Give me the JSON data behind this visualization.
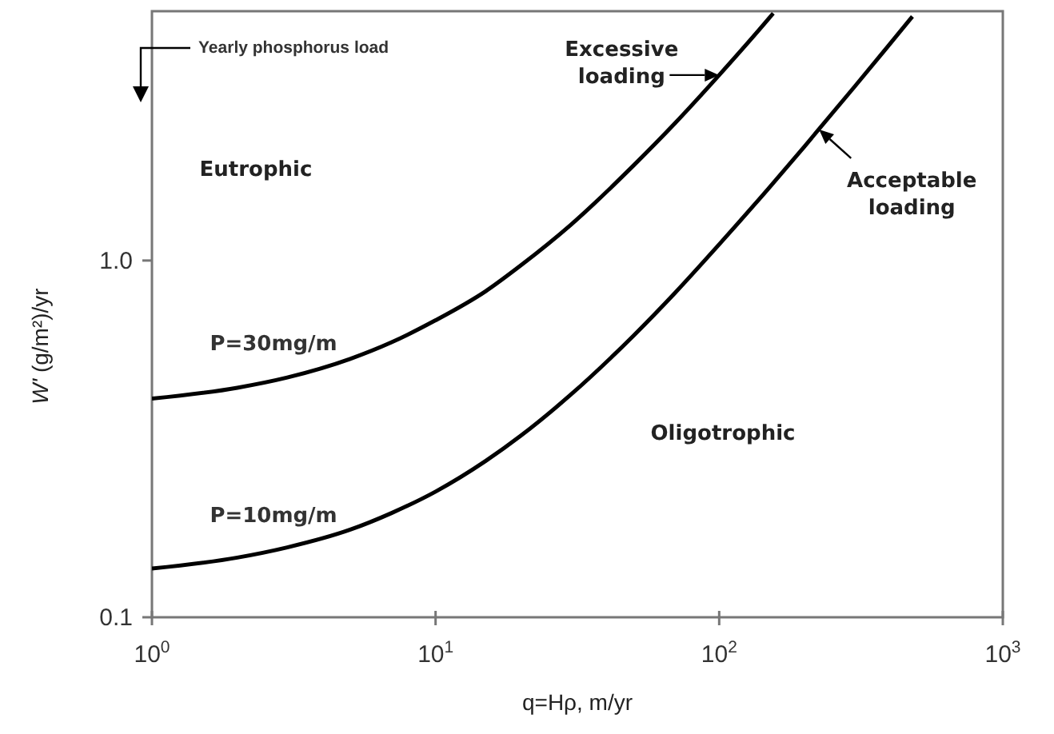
{
  "chart_data": {
    "type": "line",
    "xlabel": "q=Hρ, m/yr",
    "ylabel": "W' (g/m²)/yr",
    "log": "xy",
    "xlim": [
      1,
      1000
    ],
    "ylim": [
      0.1,
      5
    ],
    "xticks": [
      {
        "value": 1,
        "label": "10$^{0}$"
      },
      {
        "value": 10,
        "label": "10$^{1}$"
      },
      {
        "value": 100,
        "label": "10$^{2}$"
      },
      {
        "value": 1000,
        "label": "10$^{3}$"
      }
    ],
    "yticks": [
      {
        "value": 0.1,
        "label": "0.1"
      },
      {
        "value": 1,
        "label": "1.0"
      }
    ],
    "marker": "none",
    "line_style": "solid",
    "series": [
      {
        "name": "P=30mg/m",
        "color": "#000000",
        "x": [
          1,
          2,
          3,
          5,
          7,
          10,
          15,
          20,
          30,
          50,
          70,
          100,
          150,
          155
        ],
        "values": [
          0.41,
          0.44,
          0.47,
          0.53,
          0.59,
          0.68,
          0.82,
          0.97,
          1.26,
          1.85,
          2.43,
          3.31,
          4.78,
          4.93
        ]
      },
      {
        "name": "P=10mg/m",
        "color": "#000000",
        "x": [
          1,
          2,
          3,
          5,
          7,
          10,
          15,
          20,
          30,
          50,
          70,
          100,
          150,
          200,
          300,
          400,
          480
        ],
        "values": [
          0.137,
          0.147,
          0.157,
          0.176,
          0.196,
          0.225,
          0.274,
          0.323,
          0.421,
          0.617,
          0.813,
          1.11,
          1.6,
          2.09,
          3.07,
          4.05,
          4.83
        ]
      }
    ],
    "annotations": [
      "Yearly phosphorus load",
      "Eutrophic",
      "Oligotrophic",
      {
        "text": "Excessive loading",
        "x": 100,
        "y": 3.31
      },
      {
        "text": "Acceptable loading",
        "x": 225,
        "y": 2.33
      }
    ]
  }
}
